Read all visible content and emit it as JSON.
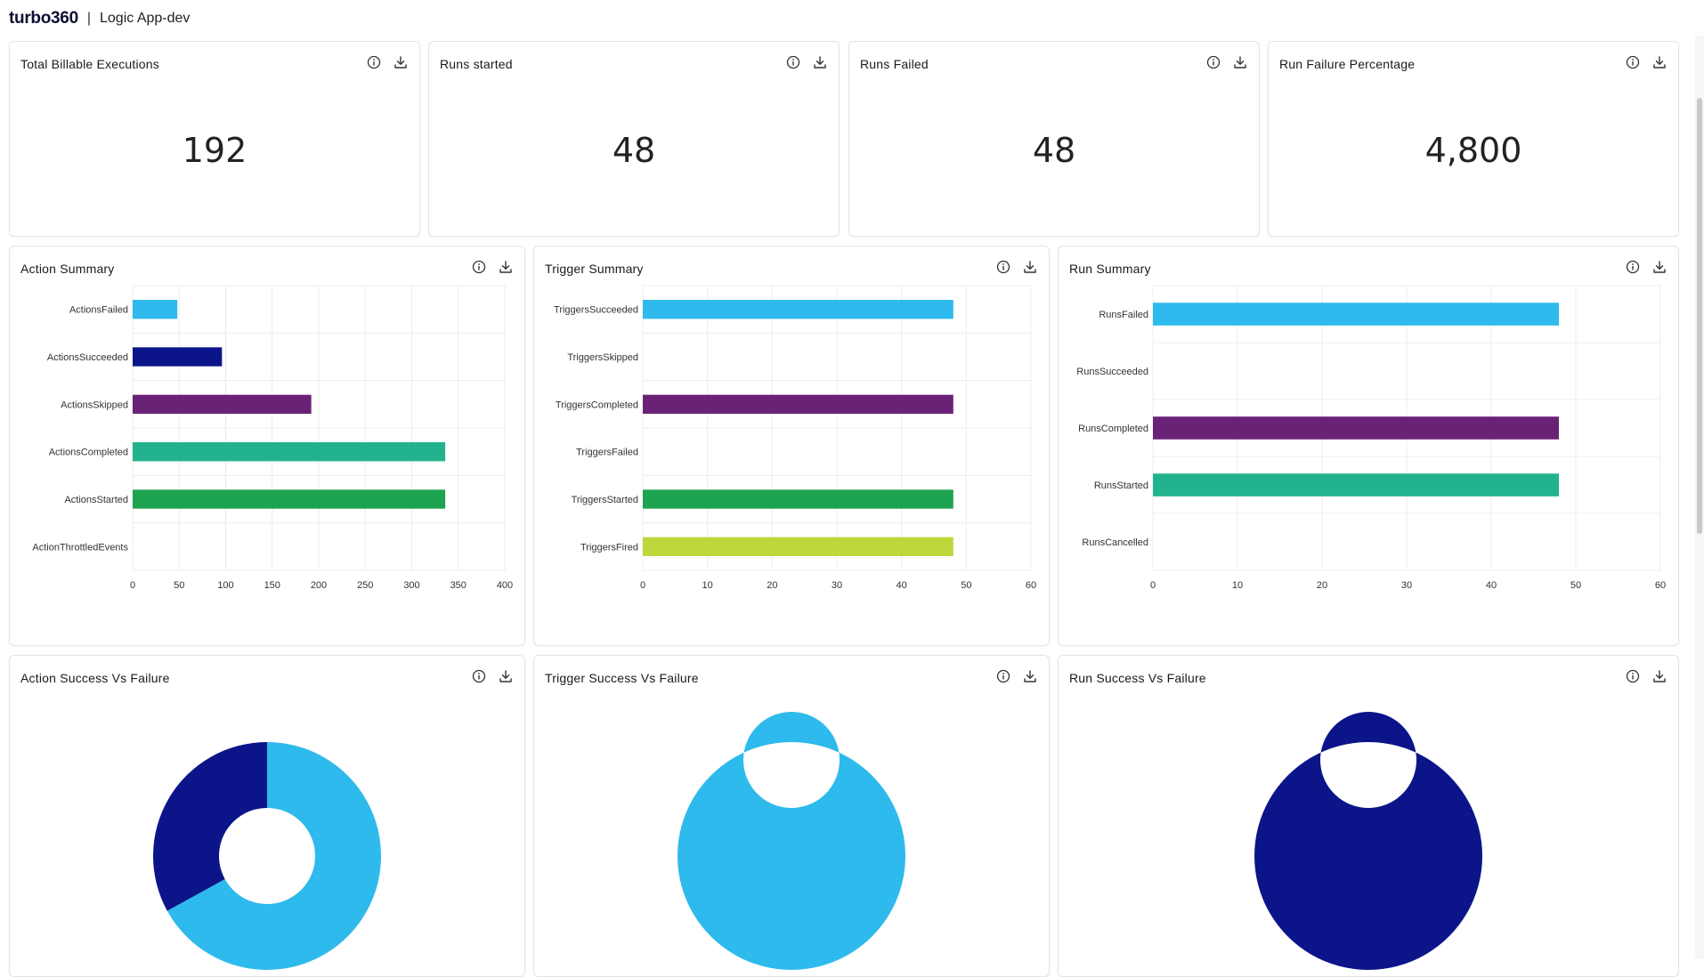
{
  "header": {
    "brand": "turbo360",
    "separator": "|",
    "app_name": "Logic App-dev"
  },
  "kpis": [
    {
      "title": "Total Billable Executions",
      "value": "192"
    },
    {
      "title": "Runs started",
      "value": "48"
    },
    {
      "title": "Runs Failed",
      "value": "48"
    },
    {
      "title": "Run Failure Percentage",
      "value": "4,800"
    }
  ],
  "icons": {
    "info": "info-circle-icon",
    "download": "download-icon"
  },
  "colors": {
    "light_blue": "#2ebaec",
    "navy": "#0b1589",
    "purple": "#6a2277",
    "teal": "#22b38e",
    "green": "#1da34f",
    "lime": "#bfd73a"
  },
  "chart_data": [
    {
      "type": "bar",
      "orientation": "horizontal",
      "title": "Action Summary",
      "categories": [
        "ActionsFailed",
        "ActionsSucceeded",
        "ActionsSkipped",
        "ActionsCompleted",
        "ActionsStarted",
        "ActionThrottledEvents"
      ],
      "values": [
        48,
        96,
        192,
        336,
        336,
        0
      ],
      "colors": [
        "#2ebaec",
        "#0b1589",
        "#6a2277",
        "#22b38e",
        "#1da34f",
        "#bfd73a"
      ],
      "xlim": [
        0,
        400
      ],
      "xticks": [
        0,
        50,
        100,
        150,
        200,
        250,
        300,
        350,
        400
      ],
      "grid": true
    },
    {
      "type": "bar",
      "orientation": "horizontal",
      "title": "Trigger Summary",
      "categories": [
        "TriggersSucceeded",
        "TriggersSkipped",
        "TriggersCompleted",
        "TriggersFailed",
        "TriggersStarted",
        "TriggersFired"
      ],
      "values": [
        48,
        0,
        48,
        0,
        48,
        48
      ],
      "colors": [
        "#2ebaec",
        "#0b1589",
        "#6a2277",
        "#22b38e",
        "#1da34f",
        "#bfd73a"
      ],
      "xlim": [
        0,
        60
      ],
      "xticks": [
        0,
        10,
        20,
        30,
        40,
        50,
        60
      ],
      "grid": true
    },
    {
      "type": "bar",
      "orientation": "horizontal",
      "title": "Run Summary",
      "categories": [
        "RunsFailed",
        "RunsSucceeded",
        "RunsCompleted",
        "RunsStarted",
        "RunsCancelled"
      ],
      "values": [
        48,
        0,
        48,
        48,
        0
      ],
      "colors": [
        "#2ebaec",
        "#0b1589",
        "#6a2277",
        "#22b38e",
        "#1da34f"
      ],
      "xlim": [
        0,
        60
      ],
      "xticks": [
        0,
        10,
        20,
        30,
        40,
        50,
        60
      ],
      "grid": true
    },
    {
      "type": "pie",
      "title": "Action Success Vs Failure",
      "slices": [
        {
          "value": 67,
          "color": "#2ebaec"
        },
        {
          "value": 33,
          "color": "#0b1589"
        }
      ]
    },
    {
      "type": "pie",
      "title": "Trigger Success Vs Failure",
      "slices": [
        {
          "value": 100,
          "color": "#2ebaec"
        }
      ]
    },
    {
      "type": "pie",
      "title": "Run Success Vs Failure",
      "slices": [
        {
          "value": 100,
          "color": "#0b1589"
        }
      ]
    }
  ]
}
